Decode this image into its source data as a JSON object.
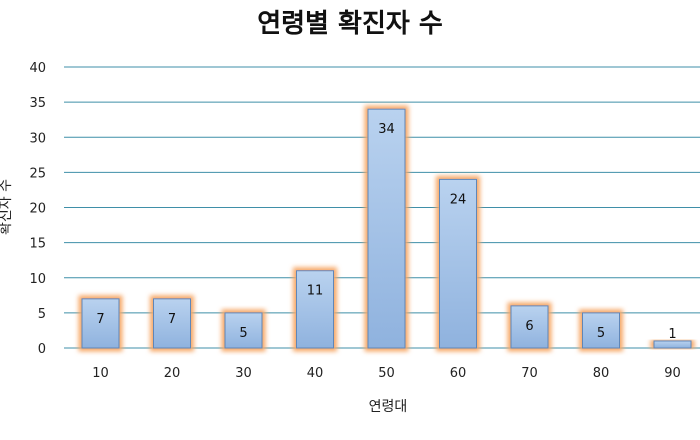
{
  "chart_data": {
    "type": "bar",
    "title": "연령별 확진자 수",
    "xlabel": "연령대",
    "ylabel": "확진자 수",
    "categories": [
      "10",
      "20",
      "30",
      "40",
      "50",
      "60",
      "70",
      "80",
      "90"
    ],
    "values": [
      7,
      7,
      5,
      11,
      34,
      24,
      6,
      5,
      1
    ],
    "ylim": [
      0,
      40
    ],
    "yticks": [
      "0",
      "5",
      "10",
      "15",
      "20",
      "25",
      "30",
      "35",
      "40"
    ],
    "grid": true,
    "legend": "none",
    "colors": {
      "bar_fill_top": "#b9d2ef",
      "bar_fill_bottom": "#8fb2de",
      "bar_stroke": "#5f86b8",
      "bar_glow": "#f6a868",
      "gridline": "#3f8fa8"
    }
  }
}
